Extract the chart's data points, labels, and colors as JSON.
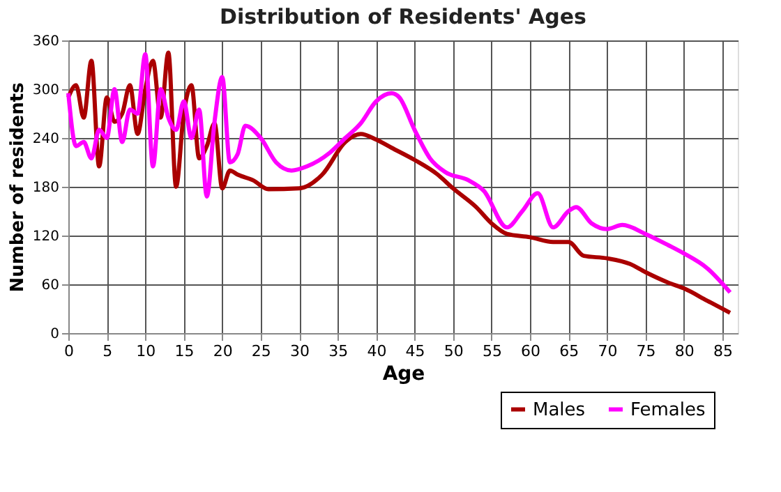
{
  "chart_data": {
    "type": "line",
    "title": "Distribution of Residents' Ages",
    "xlabel": "Age",
    "ylabel": "Number of residents",
    "xlim": [
      0,
      87
    ],
    "xticks": [
      0,
      5,
      10,
      15,
      20,
      25,
      30,
      35,
      40,
      45,
      50,
      55,
      60,
      65,
      70,
      75,
      80,
      85
    ],
    "ylim": [
      0,
      360
    ],
    "yticks": [
      0,
      60,
      120,
      180,
      240,
      300,
      360
    ],
    "grid": true,
    "legend": "bottom right",
    "marker": "none",
    "line_style": "solid",
    "series": [
      {
        "name": "Males",
        "color": "#aa0000",
        "x": [
          0,
          1,
          2,
          3,
          4,
          5,
          6,
          7,
          8,
          9,
          10,
          11,
          12,
          13,
          14,
          15,
          16,
          17,
          18,
          19,
          20,
          21,
          22,
          24,
          26,
          30,
          33,
          36,
          38,
          40,
          42,
          45,
          48,
          50,
          53,
          55,
          57,
          60,
          63,
          65,
          67,
          70,
          73,
          75,
          78,
          80,
          83,
          86
        ],
        "values": [
          290,
          305,
          265,
          335,
          205,
          290,
          260,
          270,
          305,
          245,
          300,
          335,
          265,
          345,
          180,
          270,
          305,
          215,
          230,
          258,
          178,
          200,
          195,
          188,
          177,
          178,
          195,
          235,
          245,
          238,
          228,
          213,
          195,
          178,
          155,
          135,
          122,
          118,
          112,
          112,
          95,
          92,
          85,
          75,
          62,
          55,
          40,
          25
        ]
      },
      {
        "name": "Females",
        "color": "#ff00ff",
        "x": [
          0,
          1,
          2,
          3,
          4,
          5,
          6,
          7,
          8,
          9,
          10,
          11,
          12,
          13,
          14,
          15,
          16,
          17,
          18,
          19,
          20,
          21,
          22,
          23,
          25,
          27,
          29,
          31,
          34,
          36,
          38,
          40,
          42,
          43,
          45,
          47,
          49,
          52,
          54,
          57,
          59,
          61,
          63,
          65,
          66,
          68,
          70,
          72,
          75,
          78,
          80,
          83,
          86
        ],
        "values": [
          295,
          230,
          235,
          215,
          250,
          240,
          300,
          235,
          275,
          270,
          343,
          205,
          300,
          265,
          250,
          285,
          240,
          275,
          168,
          260,
          315,
          210,
          220,
          255,
          240,
          210,
          200,
          205,
          222,
          240,
          258,
          285,
          295,
          290,
          250,
          215,
          198,
          188,
          175,
          130,
          150,
          172,
          130,
          150,
          155,
          135,
          128,
          133,
          122,
          108,
          98,
          80,
          50
        ]
      }
    ]
  }
}
